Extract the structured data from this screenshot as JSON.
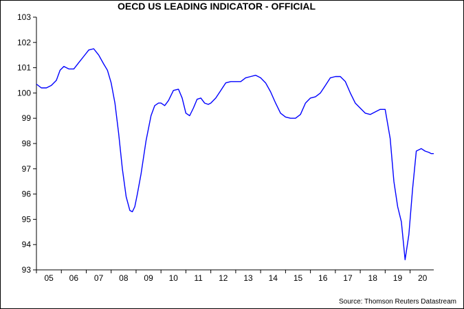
{
  "chart_data": {
    "type": "line",
    "title": "OECD US LEADING INDICATOR - OFFICIAL",
    "source": "Source: Thomson Reuters Datastream",
    "xlabel": "",
    "ylabel": "",
    "ylim": [
      93,
      103
    ],
    "xlim": [
      2005.0,
      2020.95
    ],
    "y_ticks": [
      "93",
      "94",
      "95",
      "96",
      "97",
      "98",
      "99",
      "100",
      "101",
      "102",
      "103"
    ],
    "x_tick_labels": [
      "05",
      "06",
      "07",
      "08",
      "09",
      "10",
      "11",
      "12",
      "13",
      "14",
      "15",
      "16",
      "17",
      "18",
      "19",
      "20"
    ],
    "grid": false,
    "legend": "none",
    "line_color": "#0000ff",
    "series": [
      {
        "x": [
          2005.0,
          2005.2,
          2005.4,
          2005.6,
          2005.8,
          2005.95,
          2006.1,
          2006.3,
          2006.5,
          2006.7,
          2006.9,
          2007.1,
          2007.3,
          2007.5,
          2007.7,
          2007.85,
          2008.0,
          2008.15,
          2008.3,
          2008.45,
          2008.6,
          2008.75,
          2008.85,
          2008.95,
          2009.05,
          2009.2,
          2009.4,
          2009.6,
          2009.75,
          2009.9,
          2010.0,
          2010.15,
          2010.3,
          2010.5,
          2010.7,
          2010.85,
          2011.0,
          2011.15,
          2011.3,
          2011.45,
          2011.6,
          2011.75,
          2011.9,
          2012.0,
          2012.2,
          2012.4,
          2012.6,
          2012.8,
          2013.0,
          2013.2,
          2013.4,
          2013.6,
          2013.8,
          2014.0,
          2014.2,
          2014.4,
          2014.6,
          2014.8,
          2015.0,
          2015.2,
          2015.4,
          2015.6,
          2015.8,
          2016.0,
          2016.2,
          2016.4,
          2016.6,
          2016.8,
          2017.0,
          2017.2,
          2017.4,
          2017.6,
          2017.8,
          2018.0,
          2018.2,
          2018.4,
          2018.6,
          2018.8,
          2019.0,
          2019.2,
          2019.35,
          2019.5,
          2019.65,
          2019.8,
          2019.95,
          2020.1,
          2020.25,
          2020.45,
          2020.6,
          2020.75,
          2020.85,
          2020.95
        ],
        "values": [
          100.35,
          100.2,
          100.2,
          100.3,
          100.5,
          100.9,
          101.05,
          100.95,
          100.95,
          101.2,
          101.45,
          101.7,
          101.75,
          101.5,
          101.15,
          100.9,
          100.4,
          99.6,
          98.4,
          97.0,
          95.9,
          95.35,
          95.3,
          95.5,
          96.0,
          96.8,
          98.1,
          99.1,
          99.5,
          99.6,
          99.6,
          99.5,
          99.7,
          100.1,
          100.15,
          99.8,
          99.2,
          99.1,
          99.4,
          99.75,
          99.8,
          99.6,
          99.55,
          99.6,
          99.8,
          100.1,
          100.4,
          100.45,
          100.45,
          100.45,
          100.6,
          100.65,
          100.7,
          100.6,
          100.4,
          100.05,
          99.6,
          99.2,
          99.05,
          99.0,
          99.0,
          99.15,
          99.6,
          99.8,
          99.85,
          100.0,
          100.3,
          100.6,
          100.65,
          100.65,
          100.45,
          100.0,
          99.6,
          99.4,
          99.2,
          99.15,
          99.25,
          99.35,
          99.35,
          98.2,
          96.5,
          95.5,
          94.9,
          93.4,
          94.4,
          96.2,
          97.7,
          97.8,
          97.7,
          97.65,
          97.6,
          97.6
        ]
      }
    ]
  }
}
